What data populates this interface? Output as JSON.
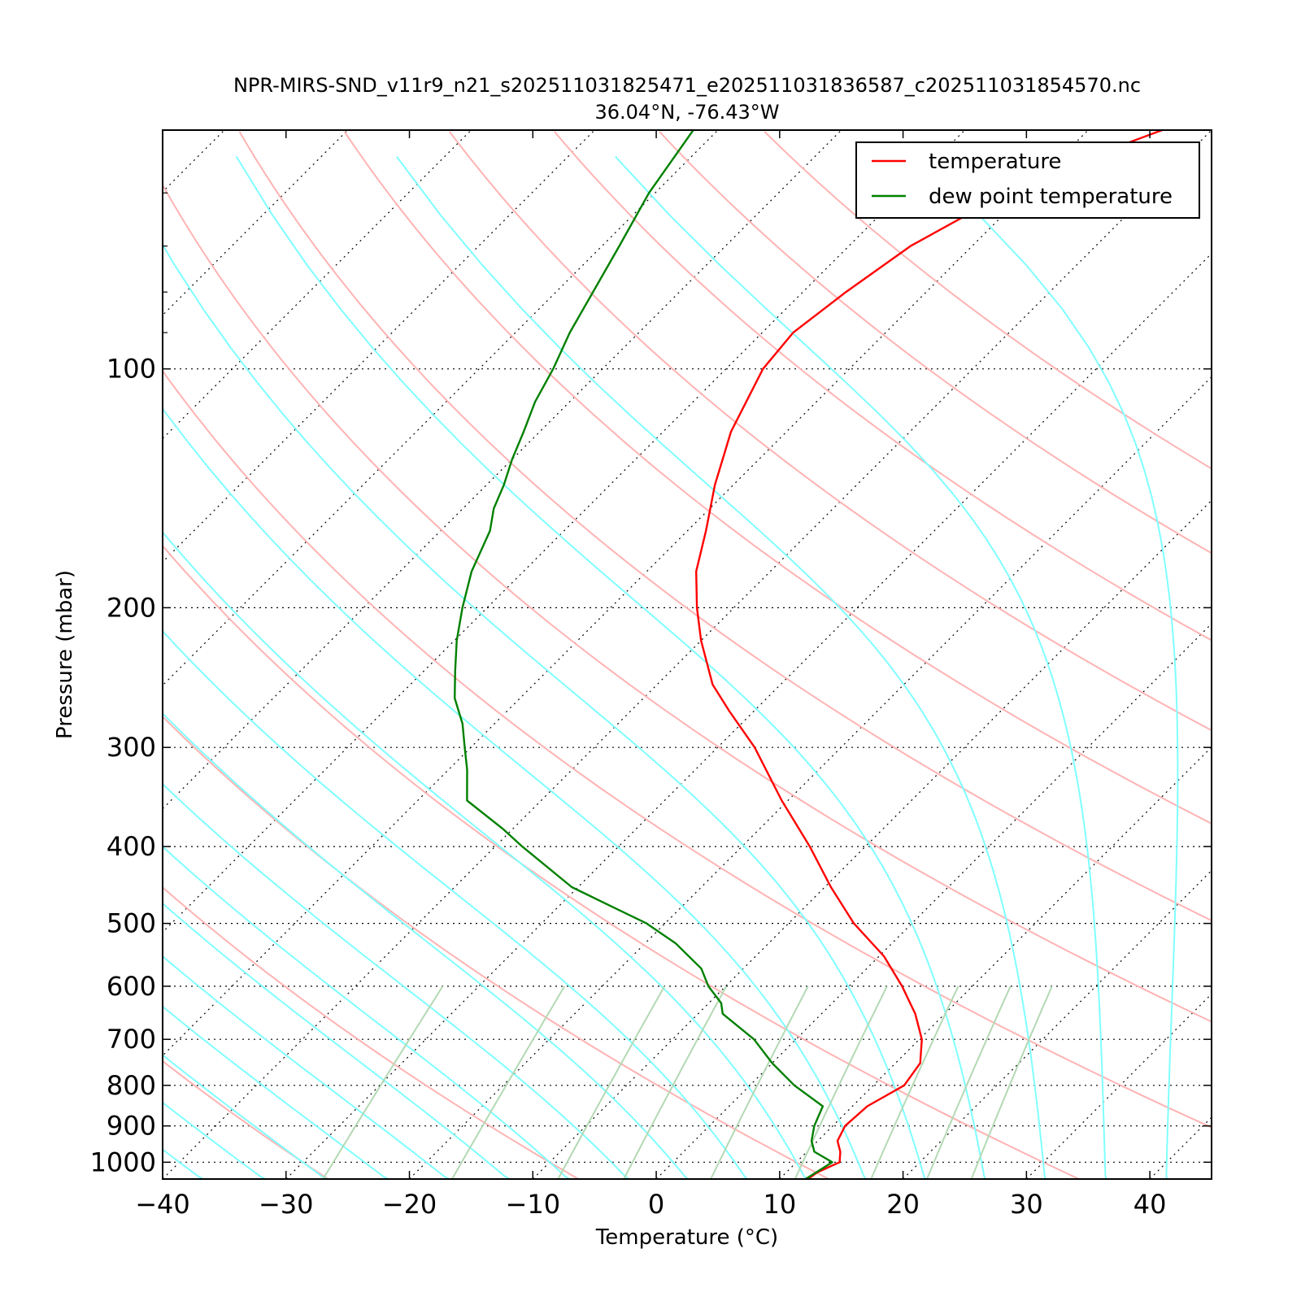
{
  "chart_data": {
    "type": "line",
    "subtype": "skew-T log-P diagram",
    "title": "NPR-MIRS-SND_v11r9_n21_s202511031825471_e202511031836587_c202511031854570.nc",
    "subtitle": "36.04°N, -76.43°W",
    "xlabel": "Temperature (°C)",
    "ylabel": "Pressure (mbar)",
    "x_scale": "linear (skewed 45°)",
    "y_scale": "log (inverted)",
    "xlim": [
      -40,
      45
    ],
    "ylim": [
      1050,
      50
    ],
    "x_ticks": [
      -40,
      -30,
      -20,
      -10,
      0,
      10,
      20,
      30,
      40
    ],
    "x_tick_labels": [
      "−40",
      "−30",
      "−20",
      "−10",
      "0",
      "10",
      "20",
      "30",
      "40"
    ],
    "y_ticks": [
      100,
      200,
      300,
      400,
      500,
      600,
      700,
      800,
      900,
      1000
    ],
    "y_tick_labels": [
      "100",
      "200",
      "300",
      "400",
      "500",
      "600",
      "700",
      "800",
      "900",
      "1000"
    ],
    "grid": "dotted (pressure levels and skewed isotherms)",
    "legend_position": "top-right",
    "series": [
      {
        "name": "temperature",
        "color": "#ff0000",
        "points": [
          [
            1050,
            12.3
          ],
          [
            1030,
            12.5
          ],
          [
            1000,
            13.5
          ],
          [
            970,
            12.7
          ],
          [
            940,
            11.6
          ],
          [
            900,
            11.0
          ],
          [
            850,
            11.2
          ],
          [
            800,
            12.5
          ],
          [
            750,
            12.0
          ],
          [
            700,
            10.2
          ],
          [
            650,
            7.6
          ],
          [
            600,
            4.3
          ],
          [
            550,
            0.4
          ],
          [
            500,
            -4.7
          ],
          [
            450,
            -9.5
          ],
          [
            400,
            -14.5
          ],
          [
            350,
            -20.5
          ],
          [
            300,
            -27.0
          ],
          [
            270,
            -32.0
          ],
          [
            250,
            -35.5
          ],
          [
            220,
            -40.0
          ],
          [
            200,
            -43.0
          ],
          [
            180,
            -46.0
          ],
          [
            160,
            -48.5
          ],
          [
            140,
            -51.5
          ],
          [
            120,
            -54.5
          ],
          [
            100,
            -57.0
          ],
          [
            90,
            -57.5
          ],
          [
            80,
            -56.5
          ],
          [
            70,
            -55.0
          ],
          [
            60,
            -51.5
          ],
          [
            55,
            -48.5
          ],
          [
            50,
            -44.0
          ]
        ]
      },
      {
        "name": "dew point temperature",
        "color": "#008000",
        "points": [
          [
            1050,
            12.1
          ],
          [
            1000,
            12.9
          ],
          [
            970,
            10.6
          ],
          [
            940,
            9.5
          ],
          [
            900,
            8.5
          ],
          [
            850,
            7.6
          ],
          [
            800,
            3.6
          ],
          [
            750,
            0.0
          ],
          [
            700,
            -3.4
          ],
          [
            650,
            -8.0
          ],
          [
            630,
            -9.0
          ],
          [
            600,
            -11.4
          ],
          [
            570,
            -13.4
          ],
          [
            530,
            -17.5
          ],
          [
            500,
            -21.5
          ],
          [
            450,
            -30.5
          ],
          [
            400,
            -37.8
          ],
          [
            380,
            -40.8
          ],
          [
            350,
            -46.0
          ],
          [
            320,
            -48.5
          ],
          [
            300,
            -50.5
          ],
          [
            280,
            -52.6
          ],
          [
            260,
            -55.3
          ],
          [
            240,
            -57.5
          ],
          [
            220,
            -59.8
          ],
          [
            200,
            -62.0
          ],
          [
            180,
            -64.2
          ],
          [
            160,
            -66.0
          ],
          [
            150,
            -67.5
          ],
          [
            140,
            -68.6
          ],
          [
            130,
            -70.0
          ],
          [
            120,
            -71.3
          ],
          [
            110,
            -72.8
          ],
          [
            100,
            -74.0
          ],
          [
            90,
            -75.6
          ],
          [
            80,
            -77.0
          ],
          [
            70,
            -78.6
          ],
          [
            60,
            -80.5
          ],
          [
            50,
            -82.0
          ]
        ]
      }
    ],
    "background_lines": {
      "dry_adiabats": {
        "color": "#ffb3b3",
        "theta_C": [
          -30,
          -10,
          10,
          30,
          50,
          70,
          90,
          110,
          130,
          150,
          170,
          190
        ]
      },
      "moist_adiabats": {
        "color": "#80ffff",
        "theta_w_C": [
          -40,
          -35,
          -30,
          -25,
          -20,
          -15,
          -10,
          -5,
          0,
          5,
          10,
          15,
          20,
          25,
          30,
          35,
          40
        ]
      },
      "mixing_ratio_lines": {
        "color": "#b3d9b3",
        "w_g_per_kg": [
          0.4,
          1,
          2,
          3,
          5,
          8,
          12,
          16,
          20
        ]
      }
    }
  }
}
